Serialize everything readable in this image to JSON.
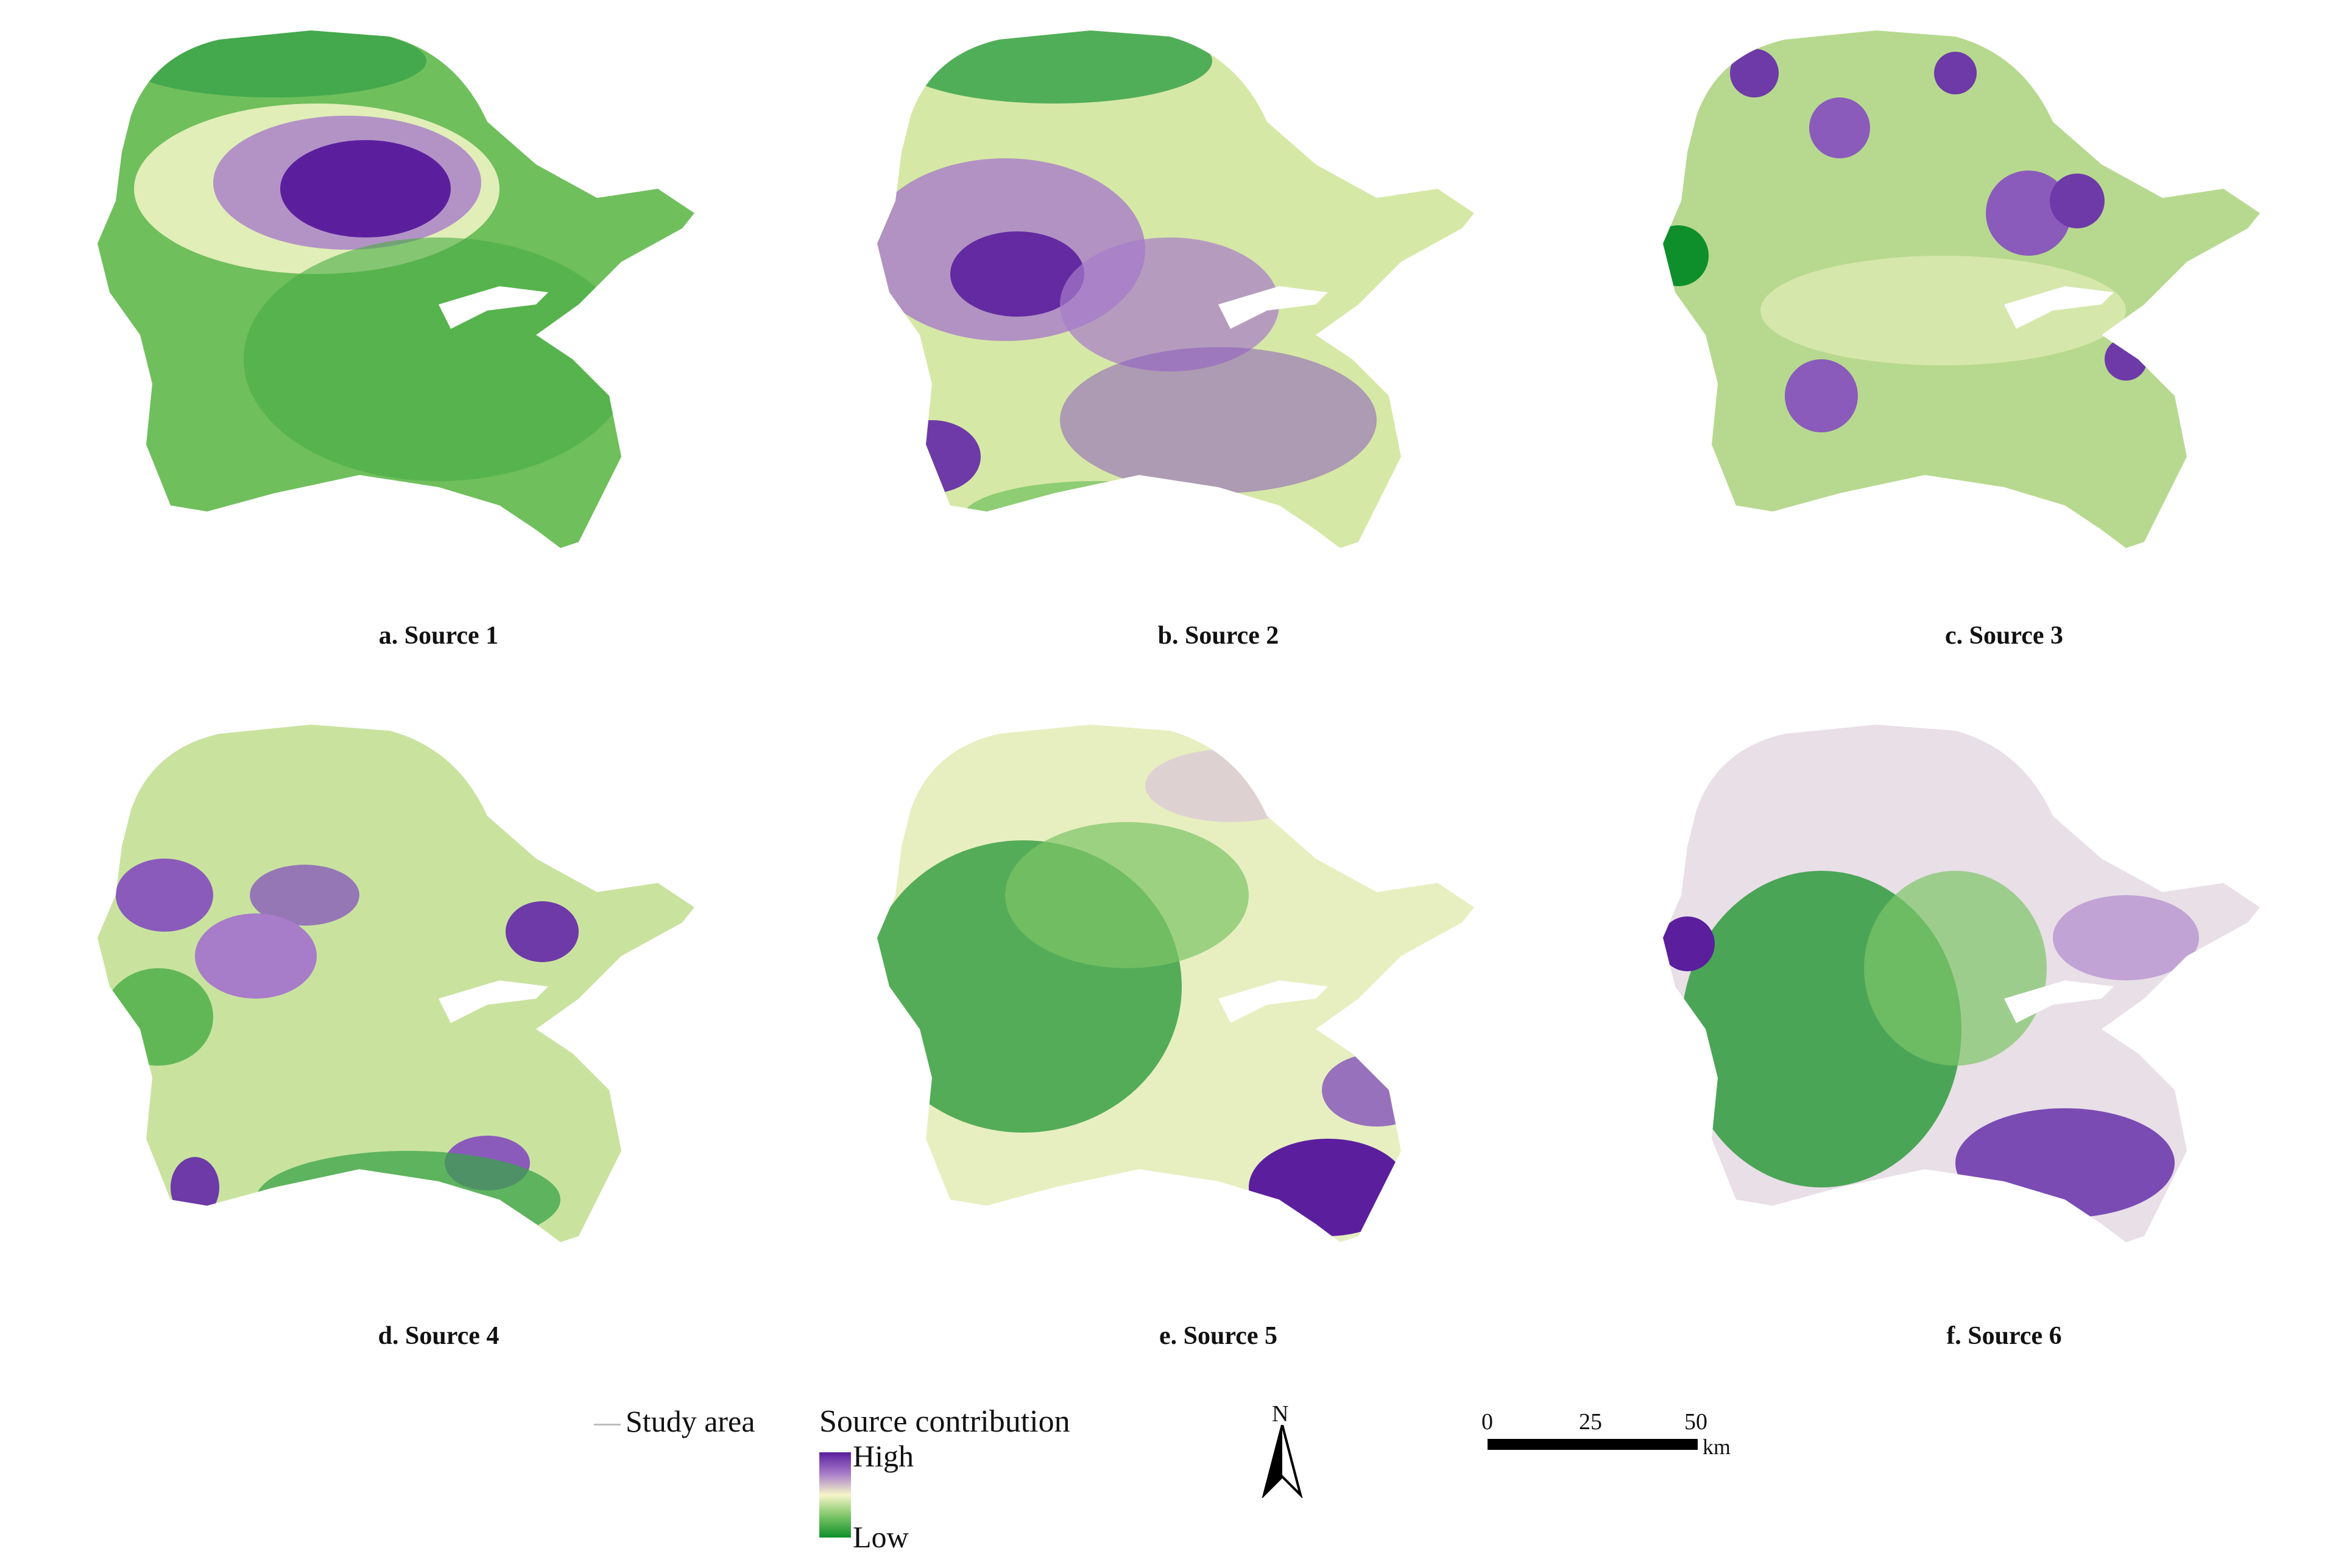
{
  "panels": [
    {
      "caption": "a. Source 1"
    },
    {
      "caption": "b. Source 2"
    },
    {
      "caption": "c. Source 3"
    },
    {
      "caption": "d. Source 4"
    },
    {
      "caption": "e. Source 5"
    },
    {
      "caption": "f. Source 6"
    }
  ],
  "legend": {
    "study_area_label": "Study area",
    "source_title": "Source contribution",
    "high_label": "High",
    "low_label": "Low"
  },
  "north_label": "N",
  "scale": {
    "ticks": [
      "0",
      "25",
      "50"
    ],
    "unit": "km"
  },
  "colors": {
    "high": "#5b1f9e",
    "mid_high": "#a77cc9",
    "mid": "#f6f6c8",
    "mid_low": "#7cc566",
    "low": "#0e8f2b",
    "boundary": "#bdbdbd"
  }
}
